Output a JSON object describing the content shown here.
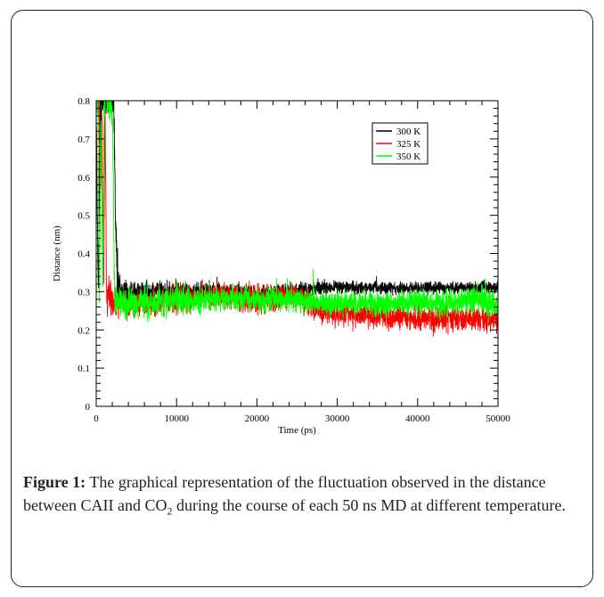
{
  "chart_data": {
    "type": "line",
    "xlabel": "Time (ps)",
    "ylabel": "Distance (nm)",
    "xlim": [
      0,
      50000
    ],
    "ylim": [
      0,
      0.8
    ],
    "x_ticks": [
      0,
      10000,
      20000,
      30000,
      40000,
      50000
    ],
    "y_ticks": [
      0,
      0.1,
      0.2,
      0.3,
      0.4,
      0.5,
      0.6,
      0.7,
      0.8
    ],
    "x_tick_labels": [
      "0",
      "10000",
      "20000",
      "30000",
      "40000",
      "50000"
    ],
    "y_tick_labels": [
      "0",
      "0.1",
      "0.2",
      "0.3",
      "0.4",
      "0.5",
      "0.6",
      "0.7",
      "0.8"
    ],
    "grid": false,
    "legend_position": "top-right",
    "series": [
      {
        "name": "300 K",
        "color": "#000000",
        "x": [
          0,
          250,
          500,
          800,
          1100,
          1400,
          1700,
          2000,
          2200,
          2400,
          2700,
          3000,
          5000,
          10000,
          15000,
          20000,
          25000,
          27000,
          30000,
          35000,
          40000,
          45000,
          50000
        ],
        "y": [
          0.8,
          0.3,
          0.8,
          0.8,
          0.8,
          0.8,
          0.8,
          0.8,
          0.8,
          0.48,
          0.3,
          0.3,
          0.3,
          0.3,
          0.3,
          0.29,
          0.3,
          0.31,
          0.31,
          0.31,
          0.31,
          0.31,
          0.31
        ],
        "noise": [
          0.02,
          0.05,
          0.05,
          0.05,
          0.05,
          0.05,
          0.05,
          0.05,
          0.05,
          0.05,
          0.05,
          0.025,
          0.025,
          0.025,
          0.025,
          0.025,
          0.022,
          0.018,
          0.015,
          0.015,
          0.015,
          0.015,
          0.015
        ]
      },
      {
        "name": "325 K",
        "color": "#ff0000",
        "x": [
          0,
          150,
          300,
          500,
          700,
          900,
          1100,
          1300,
          1500,
          1800,
          2100,
          2500,
          5000,
          10000,
          15000,
          20000,
          25000,
          27000,
          30000,
          35000,
          40000,
          45000,
          50000
        ],
        "y": [
          0.8,
          0.8,
          0.8,
          0.57,
          0.8,
          0.28,
          0.8,
          0.27,
          0.3,
          0.28,
          0.27,
          0.27,
          0.27,
          0.28,
          0.29,
          0.28,
          0.29,
          0.26,
          0.24,
          0.235,
          0.23,
          0.23,
          0.23
        ],
        "noise": [
          0.03,
          0.05,
          0.05,
          0.05,
          0.05,
          0.05,
          0.05,
          0.05,
          0.045,
          0.045,
          0.04,
          0.035,
          0.035,
          0.035,
          0.03,
          0.035,
          0.03,
          0.03,
          0.03,
          0.03,
          0.03,
          0.03,
          0.03
        ]
      },
      {
        "name": "350 K",
        "color": "#00ff00",
        "x": [
          0,
          200,
          400,
          600,
          800,
          1000,
          1200,
          1400,
          1600,
          1800,
          2000,
          2300,
          2700,
          5000,
          10000,
          15000,
          20000,
          25000,
          30000,
          35000,
          40000,
          45000,
          48000,
          50000
        ],
        "y": [
          0.8,
          0.8,
          0.25,
          0.8,
          0.3,
          0.8,
          0.8,
          0.8,
          0.8,
          0.8,
          0.8,
          0.27,
          0.27,
          0.27,
          0.28,
          0.28,
          0.28,
          0.28,
          0.27,
          0.27,
          0.27,
          0.27,
          0.28,
          0.26
        ],
        "noise": [
          0.05,
          0.05,
          0.05,
          0.05,
          0.05,
          0.05,
          0.05,
          0.05,
          0.05,
          0.05,
          0.05,
          0.045,
          0.04,
          0.035,
          0.035,
          0.032,
          0.03,
          0.03,
          0.03,
          0.03,
          0.03,
          0.03,
          0.04,
          0.03
        ]
      }
    ]
  },
  "caption": {
    "label": "Figure 1:",
    "text_before_sub": " The graphical representation of the fluctuation observed in the distance between CAII and CO",
    "sub": "2",
    "text_after_sub": " during the course of each 50 ns MD at different temperature."
  }
}
